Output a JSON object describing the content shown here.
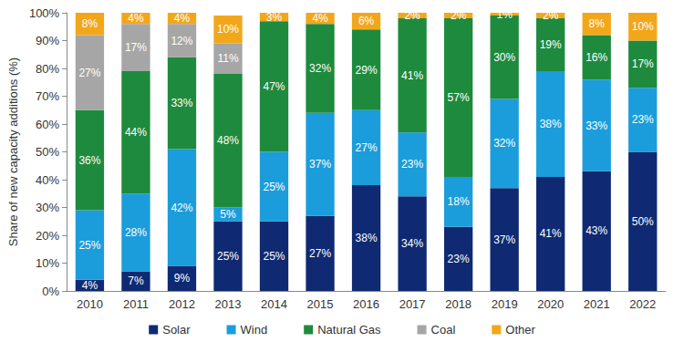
{
  "chart_data": {
    "type": "bar",
    "stacked": true,
    "data_labels": true,
    "grid": false,
    "legend": "bottom",
    "y_label": "Share of new capacity additions (%)",
    "categories": [
      "2010",
      "2011",
      "2012",
      "2013",
      "2014",
      "2015",
      "2016",
      "2017",
      "2018",
      "2019",
      "2020",
      "2021",
      "2022"
    ],
    "ylim": [
      0,
      100
    ],
    "yticks": [
      {
        "value": 0,
        "label": "0%"
      },
      {
        "value": 10,
        "label": "10%"
      },
      {
        "value": 20,
        "label": "20%"
      },
      {
        "value": 30,
        "label": "30%"
      },
      {
        "value": 40,
        "label": "40%"
      },
      {
        "value": 50,
        "label": "50%"
      },
      {
        "value": 60,
        "label": "60%"
      },
      {
        "value": 70,
        "label": "70%"
      },
      {
        "value": 80,
        "label": "80%"
      },
      {
        "value": 90,
        "label": "90%"
      },
      {
        "value": 100,
        "label": "100%"
      }
    ],
    "series": [
      {
        "name": "Solar",
        "color": "#0f2a72",
        "values": [
          4,
          7,
          9,
          25,
          25,
          27,
          38,
          34,
          23,
          37,
          41,
          43,
          50
        ],
        "value_labels": [
          "4%",
          "7%",
          "9%",
          "25%",
          "25%",
          "27%",
          "38%",
          "34%",
          "23%",
          "37%",
          "41%",
          "43%",
          "50%"
        ]
      },
      {
        "name": "Wind",
        "color": "#1b9ddb",
        "values": [
          25,
          28,
          42,
          5,
          25,
          37,
          27,
          23,
          18,
          32,
          38,
          33,
          23
        ],
        "value_labels": [
          "25%",
          "28%",
          "42%",
          "5%",
          "25%",
          "37%",
          "27%",
          "23%",
          "18%",
          "32%",
          "38%",
          "33%",
          "23%"
        ]
      },
      {
        "name": "Natural Gas",
        "color": "#1e8a3e",
        "values": [
          36,
          44,
          33,
          48,
          47,
          32,
          29,
          41,
          57,
          30,
          19,
          16,
          17
        ],
        "value_labels": [
          "36%",
          "44%",
          "33%",
          "48%",
          "47%",
          "32%",
          "29%",
          "41%",
          "57%",
          "30%",
          "19%",
          "16%",
          "17%"
        ]
      },
      {
        "name": "Coal",
        "color": "#a6a6a6",
        "values": [
          27,
          17,
          12,
          11,
          null,
          null,
          null,
          null,
          null,
          null,
          null,
          null,
          null
        ],
        "value_labels": [
          "27%",
          "17%",
          "12%",
          "11%",
          null,
          null,
          null,
          null,
          null,
          null,
          null,
          null,
          null
        ]
      },
      {
        "name": "Other",
        "color": "#f2a71b",
        "values": [
          8,
          4,
          4,
          10,
          3,
          4,
          6,
          2,
          2,
          1,
          2,
          8,
          10
        ],
        "value_labels": [
          "8%",
          "4%",
          "4%",
          "10%",
          "3%",
          "4%",
          "6%",
          "2%",
          "2%",
          "1%",
          "2%",
          "8%",
          "10%"
        ]
      }
    ]
  }
}
